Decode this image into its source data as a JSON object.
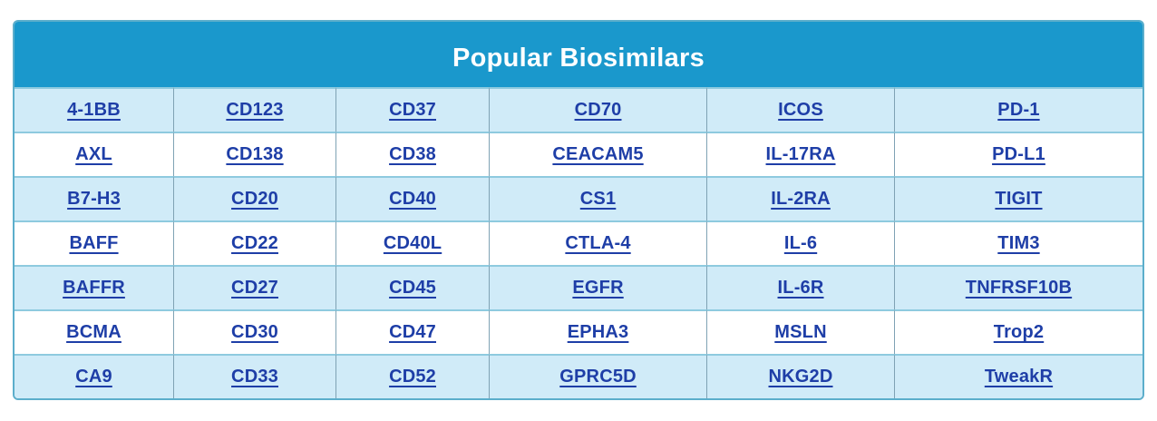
{
  "title": "Popular Biosimilars",
  "table": {
    "columns": 6,
    "rows": [
      [
        "4-1BB",
        "CD123",
        "CD37",
        "CD70",
        "ICOS",
        "PD-1"
      ],
      [
        "AXL",
        "CD138",
        "CD38",
        "CEACAM5",
        "IL-17RA",
        "PD-L1"
      ],
      [
        "B7-H3",
        "CD20",
        "CD40",
        "CS1",
        "IL-2RA",
        "TIGIT"
      ],
      [
        "BAFF",
        "CD22",
        "CD40L",
        "CTLA-4",
        "IL-6",
        "TIM3"
      ],
      [
        "BAFFR",
        "CD27",
        "CD45",
        "EGFR",
        "IL-6R",
        "TNFRSF10B"
      ],
      [
        "BCMA",
        "CD30",
        "CD47",
        "EPHA3",
        "MSLN",
        "Trop2"
      ],
      [
        "CA9",
        "CD33",
        "CD52",
        "GPRC5D",
        "NKG2D",
        "TweakR"
      ]
    ]
  },
  "colors": {
    "header_bg": "#1A98CC",
    "title_text": "#FDFEFF",
    "row_alt_bg": "#D0EBF8",
    "row_bg": "#FFFFFF",
    "link": "#1E3EA7",
    "outer_border": "#5CAECB",
    "vertical_border": "#7FA2B4",
    "horizontal_border": "#8ECADF"
  }
}
